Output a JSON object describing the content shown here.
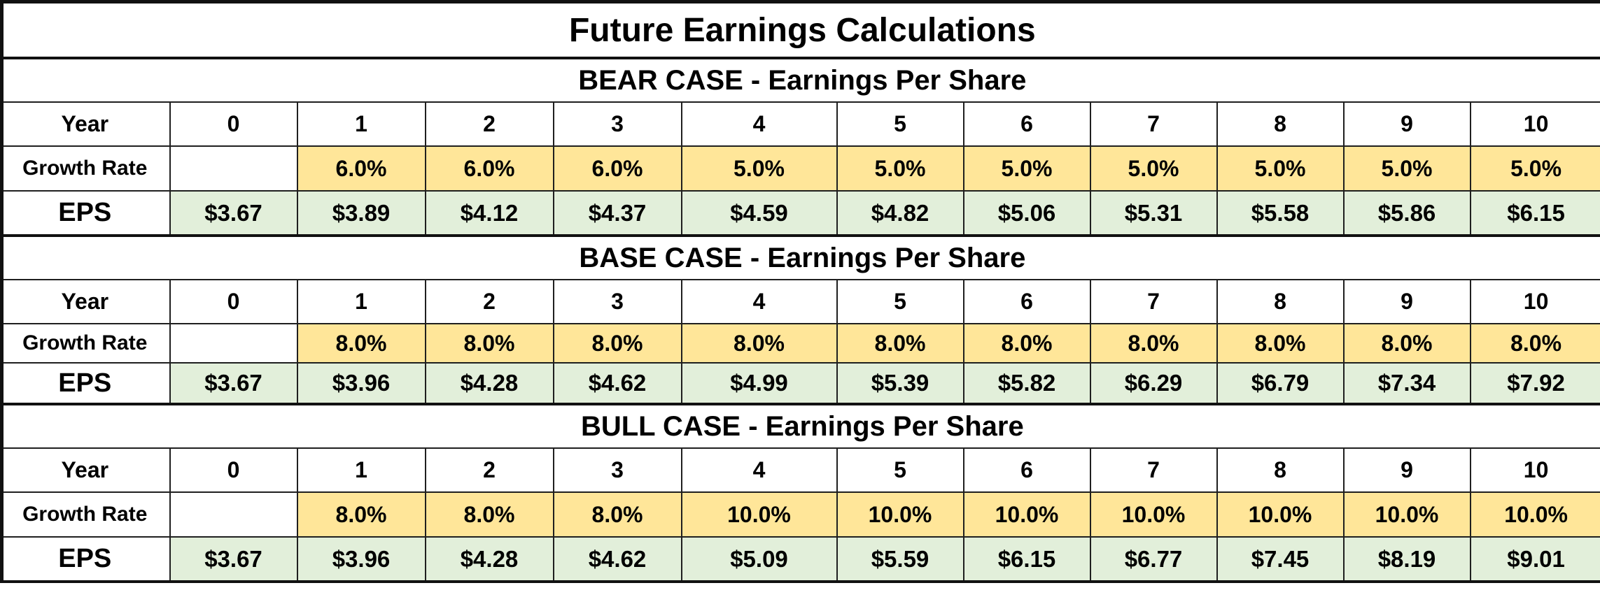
{
  "title": "Future Earnings Calculations",
  "labels": {
    "year": "Year",
    "growth_rate": "Growth Rate",
    "eps": "EPS"
  },
  "cases": [
    {
      "title": "BEAR CASE - Earnings Per Share",
      "years": [
        "0",
        "1",
        "2",
        "3",
        "4",
        "5",
        "6",
        "7",
        "8",
        "9",
        "10"
      ],
      "growth_rates": [
        "",
        "6.0%",
        "6.0%",
        "6.0%",
        "5.0%",
        "5.0%",
        "5.0%",
        "5.0%",
        "5.0%",
        "5.0%",
        "5.0%"
      ],
      "eps": [
        "$3.67",
        "$3.89",
        "$4.12",
        "$4.37",
        "$4.59",
        "$4.82",
        "$5.06",
        "$5.31",
        "$5.58",
        "$5.86",
        "$6.15"
      ]
    },
    {
      "title": "BASE CASE - Earnings Per Share",
      "years": [
        "0",
        "1",
        "2",
        "3",
        "4",
        "5",
        "6",
        "7",
        "8",
        "9",
        "10"
      ],
      "growth_rates": [
        "",
        "8.0%",
        "8.0%",
        "8.0%",
        "8.0%",
        "8.0%",
        "8.0%",
        "8.0%",
        "8.0%",
        "8.0%",
        "8.0%"
      ],
      "eps": [
        "$3.67",
        "$3.96",
        "$4.28",
        "$4.62",
        "$4.99",
        "$5.39",
        "$5.82",
        "$6.29",
        "$6.79",
        "$7.34",
        "$7.92"
      ]
    },
    {
      "title": "BULL CASE - Earnings Per Share",
      "years": [
        "0",
        "1",
        "2",
        "3",
        "4",
        "5",
        "6",
        "7",
        "8",
        "9",
        "10"
      ],
      "growth_rates": [
        "",
        "8.0%",
        "8.0%",
        "8.0%",
        "10.0%",
        "10.0%",
        "10.0%",
        "10.0%",
        "10.0%",
        "10.0%",
        "10.0%"
      ],
      "eps": [
        "$3.67",
        "$3.96",
        "$4.28",
        "$4.62",
        "$5.09",
        "$5.59",
        "$6.15",
        "$6.77",
        "$7.45",
        "$8.19",
        "$9.01"
      ]
    }
  ],
  "colors": {
    "growth_fill": "#ffe699",
    "eps_fill": "#e2efda",
    "border": "#1f1f1f"
  }
}
